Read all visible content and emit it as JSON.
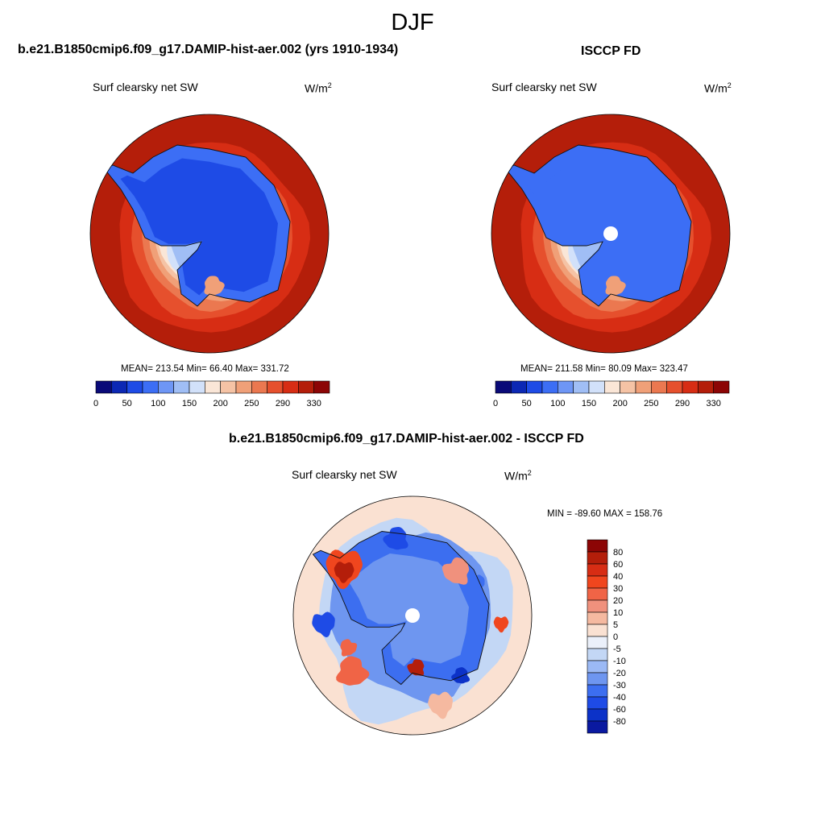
{
  "figure": {
    "season": "DJF",
    "units_base": "W/m",
    "units_exp": "2"
  },
  "panels": [
    {
      "title": "b.e21.B1850cmip6.f09_g17.DAMIP-hist-aer.002 (yrs 1910-1934)",
      "variable": "Surf clearsky net SW",
      "stats": "MEAN= 213.54  Min=  66.40  Max= 331.72",
      "has_pole_hole": false
    },
    {
      "title": "ISCCP FD",
      "variable": "Surf clearsky net SW",
      "stats": "MEAN= 211.58  Min=  80.09  Max= 323.47",
      "has_pole_hole": true
    }
  ],
  "difference_panel": {
    "title": "b.e21.B1850cmip6.f09_g17.DAMIP-hist-aer.002 - ISCCP FD",
    "variable": "Surf clearsky net SW",
    "stats": "MIN = -89.60 MAX = 158.76"
  },
  "chart_data": [
    {
      "type": "heatmap",
      "projection": "south-polar-stereographic",
      "title": "b.e21.B1850cmip6.f09_g17.DAMIP-hist-aer.002 (yrs 1910-1934)",
      "variable": "Surf clearsky net SW",
      "mean": 213.54,
      "min": 66.4,
      "max": 331.72,
      "colorbar_ticks": [
        "0",
        "50",
        "100",
        "150",
        "200",
        "250",
        "290",
        "330"
      ],
      "colorbar_colors": [
        "#0a0a78",
        "#0c28b4",
        "#1e4be6",
        "#3c6ef5",
        "#6e96f5",
        "#a0bef5",
        "#d2e1fa",
        "#fae6d7",
        "#f5c3a5",
        "#f0a078",
        "#eb7850",
        "#e6502d",
        "#d72d14",
        "#b41e0a",
        "#8c0505"
      ]
    },
    {
      "type": "heatmap",
      "projection": "south-polar-stereographic",
      "title": "ISCCP FD",
      "variable": "Surf clearsky net SW",
      "mean": 211.58,
      "min": 80.09,
      "max": 323.47,
      "colorbar_ticks": [
        "0",
        "50",
        "100",
        "150",
        "200",
        "250",
        "290",
        "330"
      ],
      "colorbar_colors": [
        "#0a0a78",
        "#0c28b4",
        "#1e4be6",
        "#3c6ef5",
        "#6e96f5",
        "#a0bef5",
        "#d2e1fa",
        "#fae6d7",
        "#f5c3a5",
        "#f0a078",
        "#eb7850",
        "#e6502d",
        "#d72d14",
        "#b41e0a",
        "#8c0505"
      ]
    },
    {
      "type": "heatmap",
      "projection": "south-polar-stereographic",
      "title": "b.e21.B1850cmip6.f09_g17.DAMIP-hist-aer.002 - ISCCP FD",
      "variable": "Surf clearsky net SW",
      "min": -89.6,
      "max": 158.76,
      "colorbar_ticks": [
        "80",
        "60",
        "40",
        "30",
        "20",
        "10",
        "5",
        "0",
        "-5",
        "-10",
        "-20",
        "-30",
        "-40",
        "-60",
        "-80"
      ],
      "colorbar_colors": [
        "#8c0505",
        "#b41e0a",
        "#d72d14",
        "#f0461e",
        "#f06446",
        "#f0917d",
        "#f5b9a0",
        "#fae1d2",
        "#ebf0fa",
        "#c3d7f5",
        "#9bb9f5",
        "#6e96f0",
        "#3c6ef0",
        "#1e4be6",
        "#0c32c8",
        "#0a19a0"
      ]
    }
  ]
}
